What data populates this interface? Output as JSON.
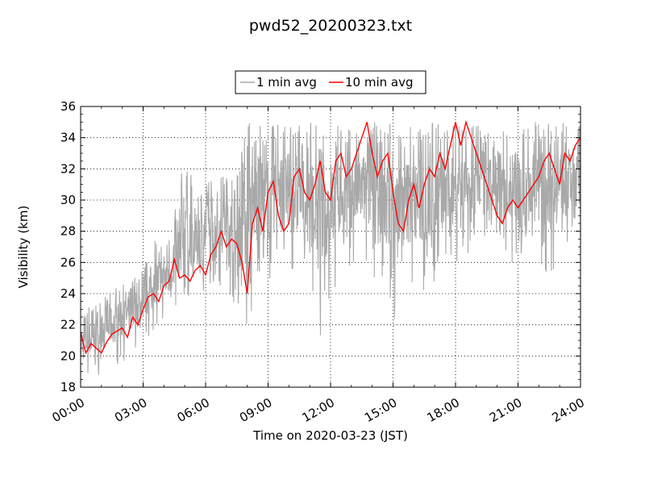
{
  "chart_data": {
    "type": "line",
    "title": "pwd52_20200323.txt",
    "xlabel": "Time on 2020-03-23 (JST)",
    "ylabel": "Visibility (km)",
    "x_unit": "hour of day (JST)",
    "xlim": [
      0,
      24
    ],
    "ylim": [
      18,
      36
    ],
    "xticks": [
      "00:00",
      "03:00",
      "06:00",
      "09:00",
      "12:00",
      "15:00",
      "18:00",
      "21:00",
      "24:00"
    ],
    "yticks": [
      "18",
      "20",
      "22",
      "24",
      "26",
      "28",
      "30",
      "32",
      "34",
      "36"
    ],
    "grid": true,
    "legend": {
      "position": "top-center",
      "entries": [
        "1 min avg",
        "10 min avg"
      ]
    },
    "series": [
      {
        "name": "1 min avg",
        "color": "#a9a9a9",
        "x": [
          0,
          0.5,
          1,
          1.5,
          2,
          2.5,
          3,
          3.5,
          4,
          4.5,
          5,
          5.5,
          6,
          6.5,
          7,
          7.5,
          8,
          8.5,
          9,
          9.5,
          10,
          10.5,
          11,
          11.5,
          12,
          12.5,
          13,
          13.5,
          14,
          14.5,
          15,
          15.5,
          16,
          16.5,
          17,
          17.5,
          18,
          18.5,
          19,
          19.5,
          20,
          20.5,
          21,
          21.5,
          22,
          22.5,
          23,
          23.5,
          24
        ],
        "y_min": [
          18.2,
          18.5,
          18.9,
          19.3,
          19.6,
          20.1,
          20.8,
          21.5,
          22.0,
          22.3,
          22.8,
          23.2,
          23.6,
          24.0,
          24.5,
          22.8,
          21.0,
          24.5,
          24.0,
          25.0,
          25.2,
          24.8,
          24.0,
          21.2,
          23.5,
          24.5,
          25.0,
          25.5,
          25.0,
          24.5,
          21.2,
          23.5,
          24.0,
          23.5,
          24.5,
          25.0,
          26.0,
          26.5,
          26.5,
          26.0,
          24.5,
          26.0,
          25.5,
          25.5,
          26.0,
          25.0,
          26.0,
          26.5,
          27.5
        ],
        "y_max": [
          23.0,
          23.2,
          23.6,
          24.2,
          24.6,
          25.0,
          25.5,
          27.5,
          27.0,
          29.0,
          33.5,
          30.5,
          31.5,
          31.0,
          32.0,
          31.5,
          35.0,
          35.0,
          35.0,
          35.0,
          35.0,
          35.0,
          35.0,
          35.0,
          35.0,
          35.0,
          35.0,
          35.0,
          35.0,
          35.0,
          35.0,
          35.0,
          35.0,
          35.0,
          35.0,
          35.0,
          35.0,
          35.0,
          35.0,
          35.0,
          33.5,
          35.0,
          35.0,
          35.0,
          35.0,
          35.0,
          35.0,
          35.0,
          35.0
        ]
      },
      {
        "name": "10 min avg",
        "color": "#ff0000",
        "x": [
          0,
          0.25,
          0.5,
          0.75,
          1,
          1.25,
          1.5,
          1.75,
          2,
          2.25,
          2.5,
          2.75,
          3,
          3.25,
          3.5,
          3.75,
          4,
          4.25,
          4.5,
          4.75,
          5,
          5.25,
          5.5,
          5.75,
          6,
          6.25,
          6.5,
          6.75,
          7,
          7.25,
          7.5,
          7.75,
          8,
          8.25,
          8.5,
          8.75,
          9,
          9.25,
          9.5,
          9.75,
          10,
          10.25,
          10.5,
          10.75,
          11,
          11.25,
          11.5,
          11.75,
          12,
          12.25,
          12.5,
          12.75,
          13,
          13.25,
          13.5,
          13.75,
          14,
          14.25,
          14.5,
          14.75,
          15,
          15.25,
          15.5,
          15.75,
          16,
          16.25,
          16.5,
          16.75,
          17,
          17.25,
          17.5,
          17.75,
          18,
          18.25,
          18.5,
          18.75,
          19,
          19.25,
          19.5,
          19.75,
          20,
          20.25,
          20.5,
          20.75,
          21,
          21.25,
          21.5,
          21.75,
          22,
          22.25,
          22.5,
          22.75,
          23,
          23.25,
          23.5,
          23.75,
          24
        ],
        "y": [
          21.5,
          20.2,
          20.8,
          20.5,
          20.2,
          20.9,
          21.4,
          21.6,
          21.8,
          21.2,
          22.5,
          22.0,
          23.0,
          23.8,
          24.0,
          23.5,
          24.5,
          24.8,
          26.2,
          25.0,
          25.2,
          24.8,
          25.5,
          25.8,
          25.2,
          26.5,
          27.0,
          28.0,
          27.0,
          27.5,
          27.2,
          26.0,
          24.0,
          28.5,
          29.5,
          28.0,
          30.5,
          31.2,
          29.0,
          28.0,
          28.5,
          31.5,
          32.0,
          30.5,
          30.0,
          31.0,
          32.5,
          30.5,
          30.0,
          32.5,
          33.0,
          31.5,
          32.0,
          33.0,
          34.0,
          35.0,
          33.0,
          31.5,
          32.5,
          33.0,
          30.5,
          28.5,
          28.0,
          30.0,
          31.0,
          29.5,
          31.0,
          32.0,
          31.5,
          33.0,
          32.0,
          33.5,
          35.0,
          33.5,
          35.0,
          34.0,
          33.0,
          32.0,
          31.0,
          30.0,
          29.0,
          28.5,
          29.5,
          30.0,
          29.5,
          30.0,
          30.5,
          31.0,
          31.5,
          32.5,
          33.0,
          32.0,
          31.0,
          33.0,
          32.5,
          33.5,
          34.0
        ]
      }
    ]
  }
}
